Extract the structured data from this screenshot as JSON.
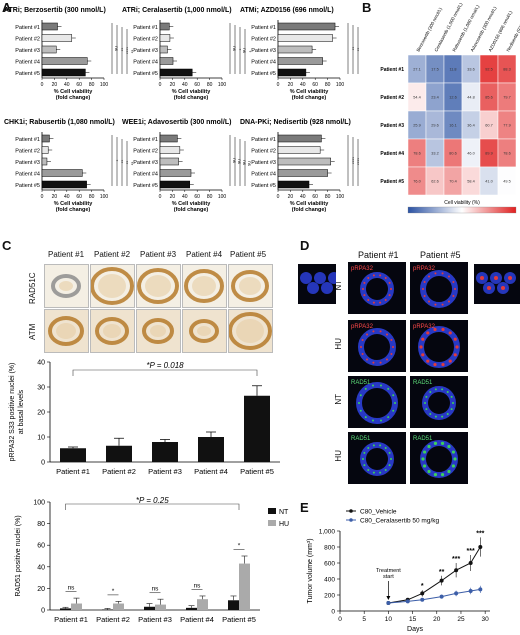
{
  "panels": {
    "A": "A",
    "B": "B",
    "C": "C",
    "D": "D",
    "E": "E"
  },
  "panelA": {
    "patients": [
      "Patient #1",
      "Patient #2",
      "Patient #3",
      "Patient #4",
      "Patient #5"
    ],
    "xlabel_line1": "% Cell viability",
    "xlabel_line2": "(fold change)",
    "ticks": [
      "0",
      "20",
      "40",
      "60",
      "80",
      "100"
    ],
    "charts": [
      {
        "title": "ATRi; Berzosertib (300 nmol/L)",
        "values": [
          25,
          48,
          23,
          73,
          70
        ],
        "sig": [
          "ns",
          "**",
          "****",
          "**"
        ]
      },
      {
        "title": "ATRi; Ceralasertib (1,000 nmol/L)",
        "values": [
          15,
          16,
          12,
          21,
          52
        ],
        "sig": [
          "ns",
          "*",
          "ns",
          "*"
        ]
      },
      {
        "title": "ATMi; AZD0156 (696 nmol/L)",
        "values": [
          92,
          88,
          55,
          72,
          45
        ],
        "sig": [
          "**",
          "**",
          "ns",
          "**"
        ]
      },
      {
        "title": "CHK1i; Rabusertib (1,080 nmol/L)",
        "values": [
          12,
          10,
          8,
          65,
          72
        ],
        "sig": [
          "*",
          "**",
          "**",
          "**"
        ]
      },
      {
        "title": "WEE1i; Adavosertib (300 nmol/L)",
        "values": [
          28,
          32,
          30,
          50,
          48
        ],
        "sig": [
          "ns",
          "ns",
          "ns",
          "ns"
        ]
      },
      {
        "title": "DNA-PKi; Nedisertib (928 nmol/L)",
        "values": [
          70,
          68,
          85,
          80,
          50
        ],
        "sig": [
          "****",
          "****",
          "ns",
          "***"
        ]
      }
    ]
  },
  "panelB": {
    "drugs": [
      "Berzosertib (300 nmol/L)",
      "Ceralasertib (1,000 nmol/L)",
      "Rabusertib (1,080 nmol/L)",
      "Adavosertib (300 nmol/L)",
      "AZD0156 (696 nmol/L)",
      "Nedisertib (928 nmol/L)"
    ],
    "rows": [
      "Patient #1",
      "Patient #2",
      "Patient #3",
      "Patient #4",
      "Patient #5"
    ],
    "values": [
      [
        27.1,
        17.5,
        11.8,
        33.6,
        92.5,
        88.3
      ],
      [
        54.4,
        23.4,
        12.6,
        44.8,
        85.6,
        79.7
      ],
      [
        25.9,
        29.6,
        16.1,
        36.4,
        60.7,
        77.9
      ],
      [
        78.6,
        33.2,
        80.6,
        46.0,
        89.9,
        78.6
      ],
      [
        76.0,
        62.6,
        70.4,
        58.4,
        41.0,
        49.5
      ]
    ],
    "colorbar_label": "Cell viability (%)",
    "colorbar_ticks": [
      "0",
      "20",
      "40",
      "60",
      "80",
      "100"
    ],
    "colors": {
      "low": "#2b52a3",
      "mid": "#ffffff",
      "high": "#e02020"
    }
  },
  "panelC": {
    "stain_rows": [
      "RAD51C",
      "ATM"
    ],
    "patients": [
      "Patient #1",
      "Patient #2",
      "Patient #3",
      "Patient #4",
      "Patient #5"
    ],
    "chart1": {
      "ylabel_line1": "pRPA32 S33 positive nuclei (%)",
      "ylabel_line2": "at basal levels",
      "yticks": [
        "0",
        "10",
        "20",
        "30",
        "40"
      ],
      "values": [
        5.5,
        6.5,
        8,
        10,
        26.5
      ],
      "errors": [
        0.5,
        3,
        1,
        2,
        4
      ],
      "annotation": "*P = 0.018"
    },
    "chart2": {
      "ylabel": "RAD51 positive nuclei (%)",
      "yticks": [
        "0",
        "20",
        "40",
        "60",
        "80",
        "100"
      ],
      "NT": [
        1.5,
        0.5,
        3,
        2,
        9
      ],
      "HU": [
        6,
        6,
        5,
        10,
        43
      ],
      "NT_err": [
        1,
        1,
        3,
        2,
        4
      ],
      "HU_err": [
        5,
        2,
        5,
        3,
        7
      ],
      "sig": [
        "ns",
        "*",
        "ns",
        "ns",
        "*"
      ],
      "annotation": "*P = 0.25",
      "legend": [
        "NT",
        "HU"
      ]
    }
  },
  "panelD": {
    "columns": [
      "Patient #1",
      "Patient #5"
    ],
    "row_labels": [
      "NT",
      "HU",
      "NT",
      "HU"
    ],
    "stain_labels": [
      "pRPA32",
      "pRPA32",
      "RAD51",
      "RAD51"
    ],
    "scale_label": ""
  },
  "panelE": {
    "legend": [
      "C80_Vehicle",
      "C80_Ceralasertib 50 mg/kg"
    ],
    "ylabel": "Tumor volume (mm³)",
    "xlabel": "Days",
    "yticks": [
      "0",
      "200",
      "400",
      "600",
      "800",
      "1,000"
    ],
    "xticks": [
      "0",
      "5",
      "10",
      "15",
      "20",
      "25",
      "30"
    ],
    "treatment_label_line1": "Treatment",
    "treatment_label_line2": "start",
    "chart_data": {
      "type": "line",
      "x": [
        10,
        14,
        17,
        21,
        24,
        27,
        29
      ],
      "series": [
        {
          "name": "C80_Vehicle",
          "values": [
            100,
            140,
            220,
            380,
            510,
            600,
            800
          ],
          "err": [
            15,
            20,
            40,
            60,
            90,
            100,
            120
          ]
        },
        {
          "name": "C80_Ceralasertib 50 mg/kg",
          "values": [
            100,
            120,
            140,
            180,
            220,
            250,
            270
          ],
          "err": [
            15,
            15,
            20,
            25,
            35,
            40,
            45
          ]
        }
      ],
      "sig": [
        "",
        "",
        "*",
        "**",
        "***",
        "***",
        "***"
      ],
      "colors": {
        "vehicle": "#111111",
        "treated": "#3c5ea8"
      },
      "xlim": [
        0,
        31
      ],
      "ylim": [
        0,
        1000
      ]
    }
  }
}
